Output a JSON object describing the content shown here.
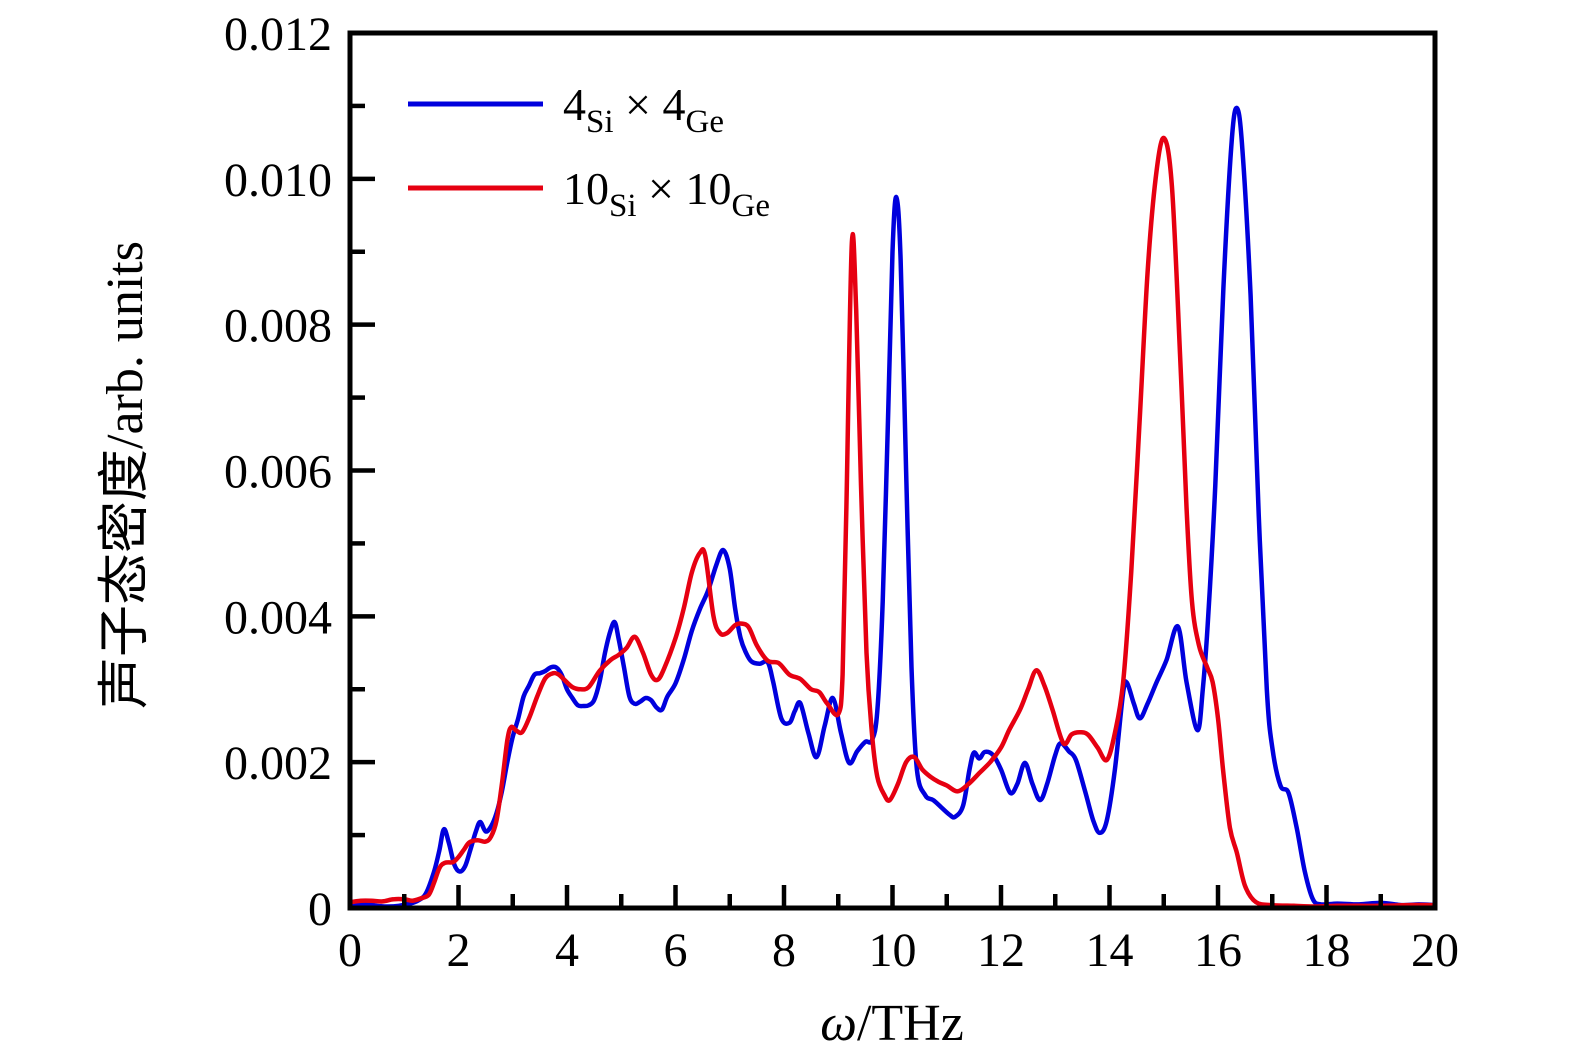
{
  "figure": {
    "background": "#ffffff",
    "axis_color": "#000000"
  },
  "chart_data": {
    "type": "line",
    "title": "",
    "xlabel_omega": "ω",
    "xlabel_rest": "/THz",
    "ylabel": "声子态密度/arb. units",
    "xlim": [
      0,
      20
    ],
    "ylim": [
      0,
      0.012
    ],
    "grid": false,
    "legend_position": "upper-left-inside",
    "x_major_ticks": [
      {
        "v": 0,
        "label": "0"
      },
      {
        "v": 2,
        "label": "2"
      },
      {
        "v": 4,
        "label": "4"
      },
      {
        "v": 6,
        "label": "6"
      },
      {
        "v": 8,
        "label": "8"
      },
      {
        "v": 10,
        "label": "10"
      },
      {
        "v": 12,
        "label": "12"
      },
      {
        "v": 14,
        "label": "14"
      },
      {
        "v": 16,
        "label": "16"
      },
      {
        "v": 18,
        "label": "18"
      },
      {
        "v": 20,
        "label": "20"
      }
    ],
    "x_minor_ticks": [
      1,
      3,
      5,
      7,
      9,
      11,
      13,
      15,
      17,
      19
    ],
    "y_major_ticks": [
      {
        "v": 0,
        "label": "0"
      },
      {
        "v": 0.002,
        "label": "0.002"
      },
      {
        "v": 0.004,
        "label": "0.004"
      },
      {
        "v": 0.006,
        "label": "0.006"
      },
      {
        "v": 0.008,
        "label": "0.008"
      },
      {
        "v": 0.01,
        "label": "0.010"
      },
      {
        "v": 0.012,
        "label": "0.012"
      }
    ],
    "y_minor_ticks": [
      0.001,
      0.003,
      0.005,
      0.007,
      0.009,
      0.011
    ],
    "series": [
      {
        "name": "4Si×4Ge",
        "label_parts": [
          {
            "t": "4"
          },
          {
            "t": "Si",
            "sub": true
          },
          {
            "t": " × "
          },
          {
            "t": "4"
          },
          {
            "t": "Ge",
            "sub": true
          }
        ],
        "color": "#0000dd",
        "points": [
          [
            0,
            5e-05
          ],
          [
            0.2,
            6e-05
          ],
          [
            0.35,
            5e-05
          ],
          [
            0.5,
            3e-05
          ],
          [
            0.7,
            2e-05
          ],
          [
            0.9,
            3e-05
          ],
          [
            1.1,
            6e-05
          ],
          [
            1.25,
            0.0001
          ],
          [
            1.4,
            0.0002
          ],
          [
            1.55,
            0.0005
          ],
          [
            1.65,
            0.0008
          ],
          [
            1.73,
            0.00108
          ],
          [
            1.82,
            0.0009
          ],
          [
            1.92,
            0.0006
          ],
          [
            2.02,
            0.0005
          ],
          [
            2.12,
            0.00057
          ],
          [
            2.22,
            0.0008
          ],
          [
            2.32,
            0.00105
          ],
          [
            2.4,
            0.00118
          ],
          [
            2.5,
            0.00105
          ],
          [
            2.6,
            0.00112
          ],
          [
            2.7,
            0.0013
          ],
          [
            2.8,
            0.0016
          ],
          [
            2.9,
            0.002
          ],
          [
            3.0,
            0.00235
          ],
          [
            3.1,
            0.0026
          ],
          [
            3.2,
            0.0029
          ],
          [
            3.3,
            0.00305
          ],
          [
            3.4,
            0.0032
          ],
          [
            3.5,
            0.00322
          ],
          [
            3.6,
            0.00325
          ],
          [
            3.7,
            0.0033
          ],
          [
            3.8,
            0.0033
          ],
          [
            3.9,
            0.0032
          ],
          [
            4.0,
            0.003
          ],
          [
            4.1,
            0.00288
          ],
          [
            4.2,
            0.00278
          ],
          [
            4.3,
            0.00277
          ],
          [
            4.4,
            0.00278
          ],
          [
            4.5,
            0.00285
          ],
          [
            4.6,
            0.0031
          ],
          [
            4.7,
            0.0035
          ],
          [
            4.8,
            0.0038
          ],
          [
            4.88,
            0.00392
          ],
          [
            4.95,
            0.0037
          ],
          [
            5.05,
            0.0033
          ],
          [
            5.15,
            0.0029
          ],
          [
            5.25,
            0.0028
          ],
          [
            5.35,
            0.00283
          ],
          [
            5.45,
            0.00288
          ],
          [
            5.55,
            0.00285
          ],
          [
            5.65,
            0.00275
          ],
          [
            5.75,
            0.00272
          ],
          [
            5.85,
            0.0029
          ],
          [
            6.0,
            0.00308
          ],
          [
            6.15,
            0.0034
          ],
          [
            6.3,
            0.0038
          ],
          [
            6.45,
            0.0041
          ],
          [
            6.6,
            0.00435
          ],
          [
            6.75,
            0.0047
          ],
          [
            6.88,
            0.00491
          ],
          [
            7.0,
            0.00465
          ],
          [
            7.1,
            0.0041
          ],
          [
            7.2,
            0.0037
          ],
          [
            7.3,
            0.0035
          ],
          [
            7.4,
            0.00338
          ],
          [
            7.55,
            0.00335
          ],
          [
            7.7,
            0.00337
          ],
          [
            7.8,
            0.0031
          ],
          [
            7.95,
            0.0026
          ],
          [
            8.1,
            0.00254
          ],
          [
            8.2,
            0.0027
          ],
          [
            8.3,
            0.00281
          ],
          [
            8.45,
            0.0024
          ],
          [
            8.6,
            0.00207
          ],
          [
            8.75,
            0.0025
          ],
          [
            8.9,
            0.00288
          ],
          [
            9.05,
            0.0024
          ],
          [
            9.2,
            0.00199
          ],
          [
            9.35,
            0.00215
          ],
          [
            9.5,
            0.00228
          ],
          [
            9.62,
            0.0023
          ],
          [
            9.72,
            0.0027
          ],
          [
            9.82,
            0.0042
          ],
          [
            9.92,
            0.0068
          ],
          [
            10.0,
            0.009
          ],
          [
            10.07,
            0.00975
          ],
          [
            10.15,
            0.0089
          ],
          [
            10.25,
            0.006
          ],
          [
            10.35,
            0.0033
          ],
          [
            10.45,
            0.0019
          ],
          [
            10.6,
            0.00155
          ],
          [
            10.75,
            0.00148
          ],
          [
            10.9,
            0.00138
          ],
          [
            11.05,
            0.00128
          ],
          [
            11.15,
            0.00125
          ],
          [
            11.3,
            0.0014
          ],
          [
            11.42,
            0.0019
          ],
          [
            11.5,
            0.00213
          ],
          [
            11.6,
            0.00205
          ],
          [
            11.7,
            0.00214
          ],
          [
            11.85,
            0.0021
          ],
          [
            12.0,
            0.0019
          ],
          [
            12.17,
            0.00158
          ],
          [
            12.3,
            0.0017
          ],
          [
            12.44,
            0.00199
          ],
          [
            12.58,
            0.0017
          ],
          [
            12.72,
            0.00148
          ],
          [
            12.85,
            0.0017
          ],
          [
            13.0,
            0.0021
          ],
          [
            13.1,
            0.00226
          ],
          [
            13.25,
            0.00215
          ],
          [
            13.38,
            0.00203
          ],
          [
            13.55,
            0.0016
          ],
          [
            13.7,
            0.0012
          ],
          [
            13.82,
            0.00103
          ],
          [
            13.95,
            0.0012
          ],
          [
            14.1,
            0.0019
          ],
          [
            14.25,
            0.00295
          ],
          [
            14.32,
            0.00309
          ],
          [
            14.45,
            0.0028
          ],
          [
            14.56,
            0.0026
          ],
          [
            14.7,
            0.0028
          ],
          [
            14.87,
            0.0031
          ],
          [
            15.05,
            0.0034
          ],
          [
            15.26,
            0.00386
          ],
          [
            15.42,
            0.0031
          ],
          [
            15.62,
            0.00244
          ],
          [
            15.72,
            0.003
          ],
          [
            15.82,
            0.004
          ],
          [
            15.95,
            0.0058
          ],
          [
            16.1,
            0.0085
          ],
          [
            16.25,
            0.0105
          ],
          [
            16.35,
            0.01097
          ],
          [
            16.45,
            0.0104
          ],
          [
            16.6,
            0.0084
          ],
          [
            16.75,
            0.0054
          ],
          [
            16.9,
            0.003
          ],
          [
            17.0,
            0.0022
          ],
          [
            17.15,
            0.00168
          ],
          [
            17.3,
            0.00158
          ],
          [
            17.45,
            0.0011
          ],
          [
            17.6,
            0.0005
          ],
          [
            17.75,
            0.00012
          ],
          [
            17.9,
            5e-05
          ],
          [
            18.2,
            6e-05
          ],
          [
            18.6,
            5e-05
          ],
          [
            19.0,
            7e-05
          ],
          [
            19.4,
            4e-05
          ],
          [
            19.7,
            5e-05
          ],
          [
            20.0,
            4e-05
          ]
        ]
      },
      {
        "name": "10Si×10Ge",
        "label_parts": [
          {
            "t": "10"
          },
          {
            "t": "Si",
            "sub": true
          },
          {
            "t": " × "
          },
          {
            "t": "10"
          },
          {
            "t": "Ge",
            "sub": true
          }
        ],
        "color": "#e60011",
        "points": [
          [
            0,
            8e-05
          ],
          [
            0.2,
            0.0001
          ],
          [
            0.4,
            0.0001
          ],
          [
            0.6,
            9e-05
          ],
          [
            0.8,
            0.00012
          ],
          [
            1.0,
            0.00012
          ],
          [
            1.15,
            0.0001
          ],
          [
            1.3,
            0.00013
          ],
          [
            1.45,
            0.00018
          ],
          [
            1.55,
            0.00035
          ],
          [
            1.65,
            0.00055
          ],
          [
            1.75,
            0.00062
          ],
          [
            1.9,
            0.00063
          ],
          [
            2.0,
            0.0007
          ],
          [
            2.1,
            0.0008
          ],
          [
            2.2,
            0.0009
          ],
          [
            2.35,
            0.00093
          ],
          [
            2.5,
            0.00091
          ],
          [
            2.6,
            0.00098
          ],
          [
            2.7,
            0.0012
          ],
          [
            2.8,
            0.0017
          ],
          [
            2.9,
            0.0023
          ],
          [
            2.97,
            0.00248
          ],
          [
            3.07,
            0.00243
          ],
          [
            3.17,
            0.00241
          ],
          [
            3.3,
            0.0026
          ],
          [
            3.45,
            0.0029
          ],
          [
            3.6,
            0.00315
          ],
          [
            3.75,
            0.00322
          ],
          [
            3.85,
            0.0032
          ],
          [
            3.95,
            0.00313
          ],
          [
            4.1,
            0.00303
          ],
          [
            4.25,
            0.003
          ],
          [
            4.4,
            0.00303
          ],
          [
            4.6,
            0.00325
          ],
          [
            4.8,
            0.0034
          ],
          [
            4.95,
            0.00347
          ],
          [
            5.1,
            0.00357
          ],
          [
            5.25,
            0.00372
          ],
          [
            5.4,
            0.0035
          ],
          [
            5.55,
            0.0032
          ],
          [
            5.67,
            0.00313
          ],
          [
            5.8,
            0.0033
          ],
          [
            6.0,
            0.0037
          ],
          [
            6.15,
            0.0041
          ],
          [
            6.3,
            0.0046
          ],
          [
            6.45,
            0.00487
          ],
          [
            6.55,
            0.00483
          ],
          [
            6.7,
            0.004
          ],
          [
            6.82,
            0.00377
          ],
          [
            6.95,
            0.00377
          ],
          [
            7.1,
            0.00388
          ],
          [
            7.22,
            0.0039
          ],
          [
            7.35,
            0.00385
          ],
          [
            7.5,
            0.0036
          ],
          [
            7.7,
            0.00339
          ],
          [
            7.9,
            0.00336
          ],
          [
            8.1,
            0.0032
          ],
          [
            8.3,
            0.00314
          ],
          [
            8.5,
            0.003
          ],
          [
            8.65,
            0.00296
          ],
          [
            8.8,
            0.0028
          ],
          [
            9.0,
            0.00266
          ],
          [
            9.08,
            0.0032
          ],
          [
            9.15,
            0.0055
          ],
          [
            9.25,
            0.00911
          ],
          [
            9.33,
            0.0082
          ],
          [
            9.42,
            0.0058
          ],
          [
            9.52,
            0.0035
          ],
          [
            9.62,
            0.0024
          ],
          [
            9.72,
            0.0018
          ],
          [
            9.85,
            0.00155
          ],
          [
            9.95,
            0.00148
          ],
          [
            10.1,
            0.0017
          ],
          [
            10.25,
            0.002
          ],
          [
            10.4,
            0.00207
          ],
          [
            10.55,
            0.0019
          ],
          [
            10.7,
            0.0018
          ],
          [
            10.85,
            0.00173
          ],
          [
            11.0,
            0.00168
          ],
          [
            11.2,
            0.0016
          ],
          [
            11.4,
            0.0017
          ],
          [
            11.6,
            0.00185
          ],
          [
            11.8,
            0.002
          ],
          [
            12.0,
            0.0022
          ],
          [
            12.15,
            0.00244
          ],
          [
            12.35,
            0.00272
          ],
          [
            12.5,
            0.003
          ],
          [
            12.65,
            0.00326
          ],
          [
            12.8,
            0.00305
          ],
          [
            12.95,
            0.00272
          ],
          [
            13.15,
            0.00226
          ],
          [
            13.3,
            0.00238
          ],
          [
            13.45,
            0.00241
          ],
          [
            13.6,
            0.00238
          ],
          [
            13.78,
            0.0022
          ],
          [
            13.95,
            0.00203
          ],
          [
            14.1,
            0.0024
          ],
          [
            14.25,
            0.00309
          ],
          [
            14.4,
            0.0046
          ],
          [
            14.55,
            0.0066
          ],
          [
            14.7,
            0.0087
          ],
          [
            14.85,
            0.01
          ],
          [
            15.0,
            0.01056
          ],
          [
            15.15,
            0.0099
          ],
          [
            15.3,
            0.0076
          ],
          [
            15.42,
            0.0055
          ],
          [
            15.52,
            0.0042
          ],
          [
            15.65,
            0.0036
          ],
          [
            15.8,
            0.0033
          ],
          [
            15.9,
            0.0031
          ],
          [
            16.0,
            0.0026
          ],
          [
            16.1,
            0.00185
          ],
          [
            16.22,
            0.0011
          ],
          [
            16.35,
            0.00075
          ],
          [
            16.5,
            0.0003
          ],
          [
            16.7,
            8e-05
          ],
          [
            17.0,
            4e-05
          ],
          [
            17.4,
            3e-05
          ],
          [
            17.8,
            2e-05
          ],
          [
            18.2,
            3e-05
          ],
          [
            18.6,
            3e-05
          ],
          [
            19.0,
            3e-05
          ],
          [
            19.5,
            4e-05
          ],
          [
            20.0,
            4e-05
          ]
        ]
      }
    ]
  }
}
